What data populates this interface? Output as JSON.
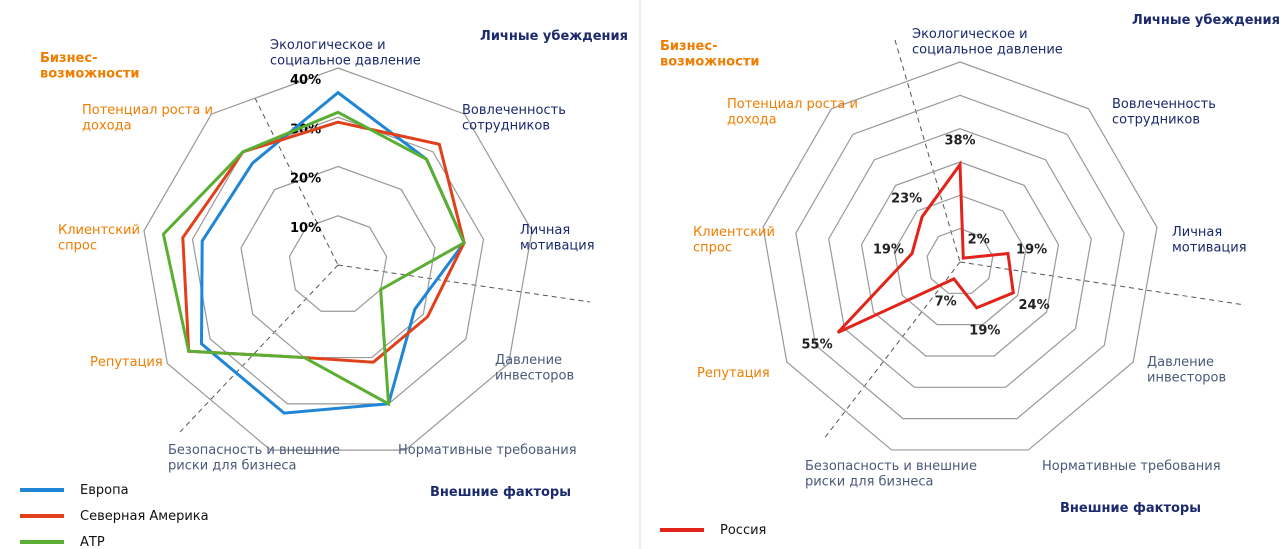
{
  "chart_data": [
    {
      "type": "radar",
      "categories": [
        "Экологическое и\nсоциальное давление",
        "Вовлеченность\nсотрудников",
        "Личная\nмотивация",
        "Давление\nинвесторов",
        "Нормативные требования",
        "Безопасность и внешние\nриски для бизнеса",
        "Репутация",
        "Клиентский\nспрос",
        "Потенциал роста и\nдохода"
      ],
      "series": [
        {
          "name": "Европа",
          "color": "#1f86d6",
          "values": [
            35,
            28,
            26,
            18,
            30,
            32,
            32,
            28,
            27
          ]
        },
        {
          "name": "Северная Америка",
          "color": "#e0401a",
          "values": [
            29,
            32,
            26,
            21,
            21,
            20,
            35,
            32,
            30
          ]
        },
        {
          "name": "АТР",
          "color": "#5aae32",
          "values": [
            31,
            28,
            26,
            10,
            30,
            20,
            35,
            36,
            30
          ]
        }
      ],
      "rlim": [
        0,
        40
      ],
      "rticks": [
        {
          "value": 10,
          "label": "10%"
        },
        {
          "value": 20,
          "label": "20%"
        },
        {
          "value": 30,
          "label": "30%"
        },
        {
          "value": 40,
          "label": "40%"
        }
      ],
      "region_labels": [
        "Бизнес-\nвозможности",
        "Личные убеждения",
        "Внешние факторы"
      ]
    },
    {
      "type": "radar",
      "categories": [
        "Экологическое и\nсоциальное давление",
        "Вовлеченность\nсотрудников",
        "Личная\nмотивация",
        "Давление\nинвесторов",
        "Нормативные требования",
        "Безопасность и внешние\nриски для бизнеса",
        "Репутация",
        "Клиентский\nспрос",
        "Потенциал роста и\nдохода"
      ],
      "series": [
        {
          "name": "Россия",
          "color": "#e2231a",
          "values": [
            38,
            2,
            19,
            24,
            19,
            7,
            55,
            19,
            23
          ],
          "value_labels": [
            "38%",
            "2%",
            "19%",
            "24%",
            "19%",
            "7%",
            "55%",
            "19%",
            "23%"
          ]
        }
      ],
      "rlim": [
        0,
        78
      ],
      "ring_count": 6,
      "region_labels": [
        "Бизнес-\nвозможности",
        "Личные убеждения",
        "Внешние факторы"
      ]
    }
  ]
}
